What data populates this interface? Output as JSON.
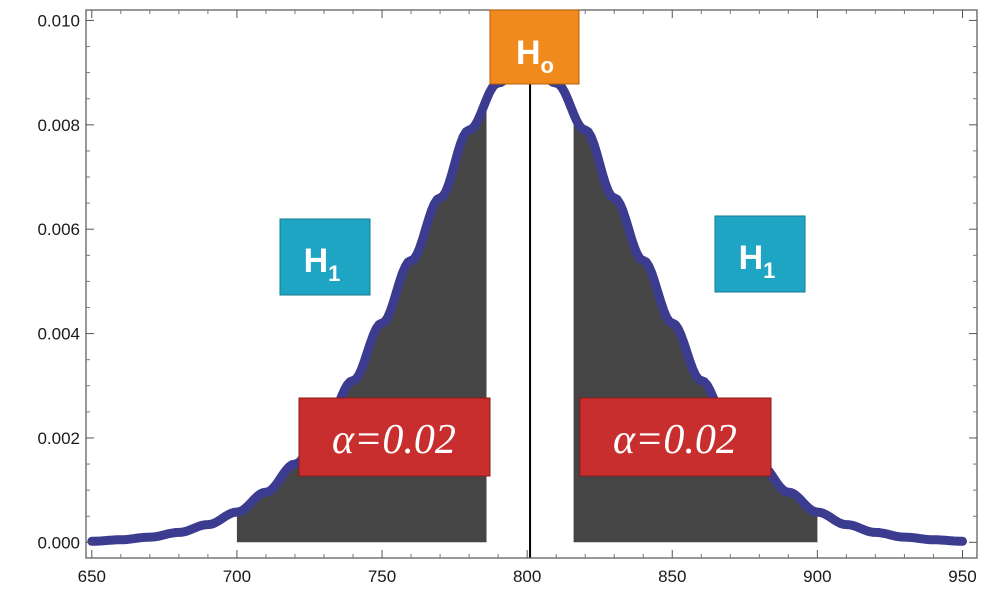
{
  "chart_data": {
    "type": "area",
    "xlim": [
      648,
      955
    ],
    "ylim": [
      -0.0003,
      0.0102
    ],
    "x_ticks": [
      "650",
      "700",
      "750",
      "800",
      "850",
      "900",
      "950"
    ],
    "y_ticks": [
      "0.000",
      "0.002",
      "0.004",
      "0.006",
      "0.008",
      "0.010"
    ],
    "curve": {
      "x": [
        650,
        660,
        670,
        680,
        690,
        700,
        710,
        720,
        730,
        740,
        750,
        760,
        770,
        780,
        790,
        800,
        810,
        820,
        830,
        840,
        850,
        860,
        870,
        880,
        890,
        900,
        910,
        920,
        930,
        940,
        950
      ],
      "y": [
        2e-05,
        5e-05,
        0.0001,
        0.00019,
        0.00034,
        0.00058,
        0.00096,
        0.0015,
        0.0022,
        0.0031,
        0.0042,
        0.0054,
        0.0066,
        0.0079,
        0.0088,
        0.0093,
        0.0088,
        0.0079,
        0.0066,
        0.0054,
        0.0042,
        0.0031,
        0.0022,
        0.0015,
        0.00096,
        0.00058,
        0.00034,
        0.00019,
        0.0001,
        5e-05,
        2e-05
      ]
    },
    "shaded_regions": [
      [
        700,
        786
      ],
      [
        816,
        900
      ]
    ],
    "center_line_x": 801,
    "grid": false,
    "colors": {
      "curve": "#3b3b8f",
      "shade": "#454545",
      "h0_box": "#f08a1c",
      "h1_box": "#1fa5c4",
      "alpha_box": "#c82e2e"
    }
  },
  "labels": {
    "h0": {
      "main": "H",
      "sub": "o"
    },
    "h1_left": {
      "main": "H",
      "sub": "1"
    },
    "h1_right": {
      "main": "H",
      "sub": "1"
    },
    "alpha_left": "α=0.02",
    "alpha_right": "α=0.02"
  }
}
